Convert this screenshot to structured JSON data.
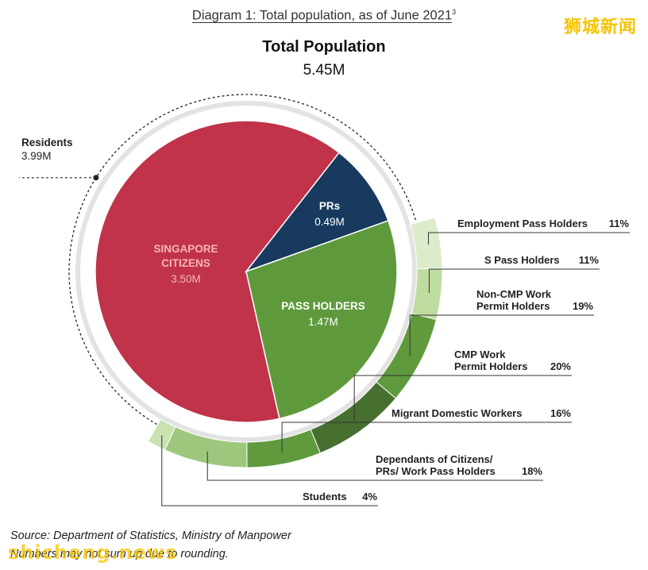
{
  "header": {
    "caption": "Diagram 1: Total population, as of June 2021",
    "caption_footnote": "3",
    "watermark_top": "狮城新闻"
  },
  "chart_data": {
    "type": "pie",
    "title": "Total Population",
    "total_label": "5.45M",
    "group_label": "Residents",
    "group_value_label": "3.99M",
    "slices": [
      {
        "name": "SINGAPORE\nCITIZENS",
        "value": 3.5,
        "value_label": "3.50M",
        "color": "#c0334a",
        "label_color": "#f6b7b1"
      },
      {
        "name": "PRs",
        "value": 0.49,
        "value_label": "0.49M",
        "color": "#173a5e",
        "label_color": "#ffffff"
      },
      {
        "name": "PASS HOLDERS",
        "value": 1.47,
        "value_label": "1.47M",
        "color": "#5e9a3c",
        "label_color": "#ffffff"
      }
    ],
    "pass_holder_breakdown": [
      {
        "name": "Employment Pass Holders",
        "percent": 11,
        "color": "#dcebc9"
      },
      {
        "name": "S Pass Holders",
        "percent": 11,
        "color": "#bfdca0"
      },
      {
        "name": "Non-CMP Work\nPermit Holders",
        "percent": 19,
        "color": "#5f9a3d"
      },
      {
        "name": "CMP Work\nPermit Holders",
        "percent": 20,
        "color": "#476f30"
      },
      {
        "name": "Migrant Domestic Workers",
        "percent": 16,
        "color": "#5f9a3d"
      },
      {
        "name": "Dependants of Citizens/\nPRs/ Work Pass Holders",
        "percent": 18,
        "color": "#9dc77d"
      },
      {
        "name": "Students",
        "percent": 4,
        "color": "#c9e2b0"
      }
    ]
  },
  "footer": {
    "source": "Source: Department of Statistics, Ministry of Manpower",
    "rounding_note": "Numbers may not sum up due to rounding.",
    "watermark_bottom": "shicheng.news"
  }
}
